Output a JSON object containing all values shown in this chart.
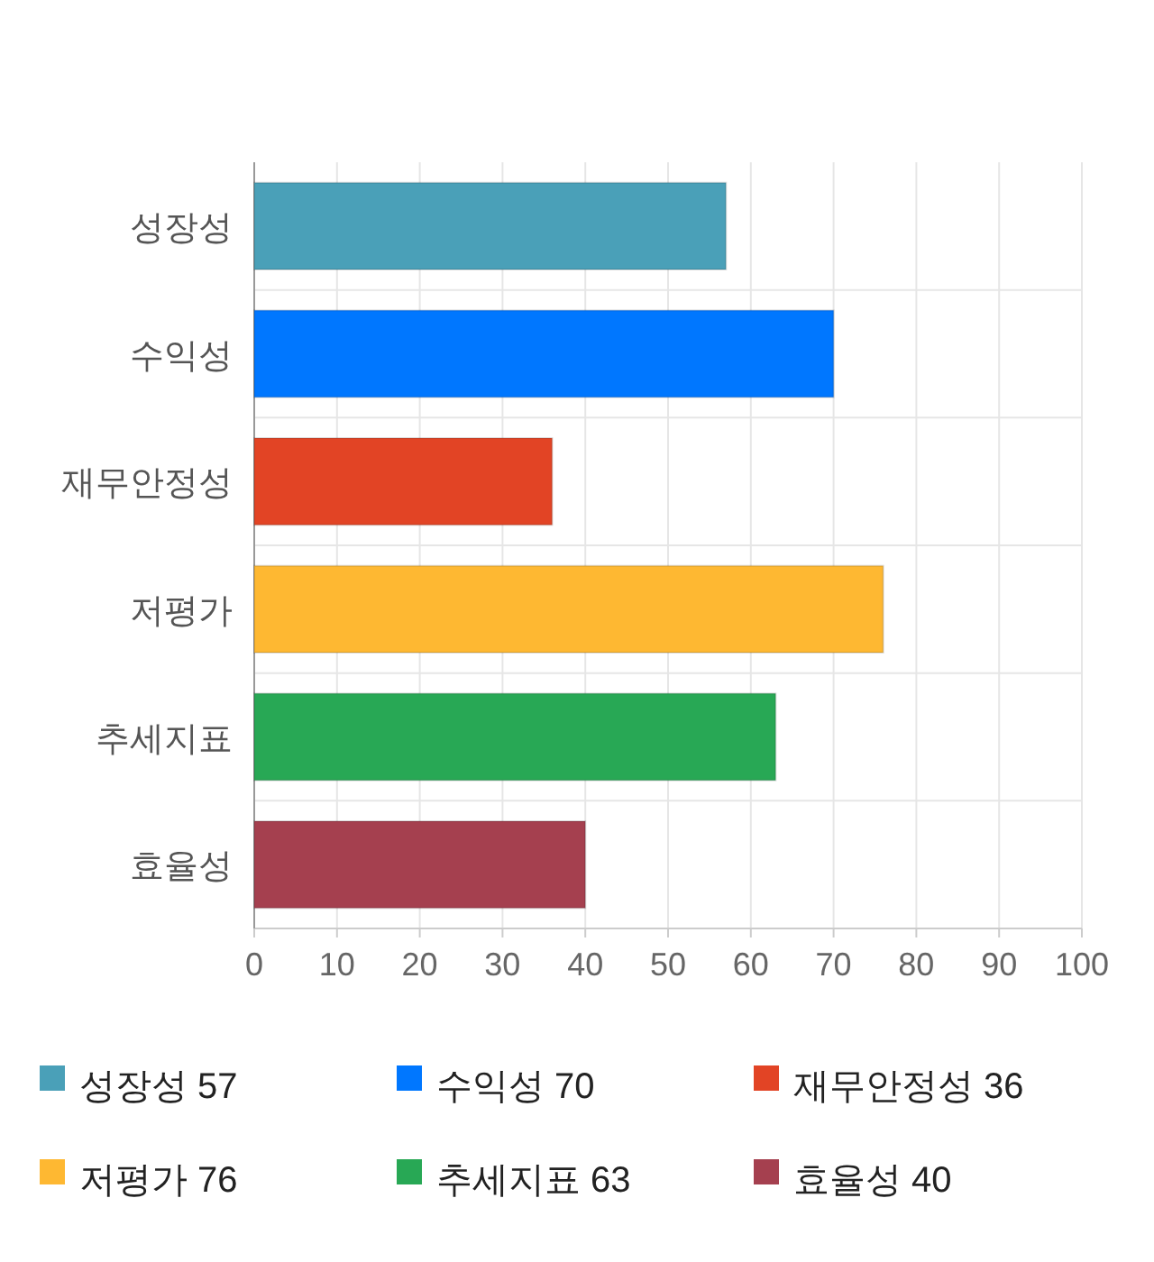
{
  "chart_data": {
    "type": "bar",
    "orientation": "horizontal",
    "categories": [
      "성장성",
      "수익성",
      "재무안정성",
      "저평가",
      "추세지표",
      "효율성"
    ],
    "series": [
      {
        "name": "성장성 57",
        "color": "#4aa0b8",
        "values": [
          57,
          null,
          null,
          null,
          null,
          null
        ]
      },
      {
        "name": "수익성 70",
        "color": "#0077ff",
        "values": [
          null,
          70,
          null,
          null,
          null,
          null
        ]
      },
      {
        "name": "재무안정성 36",
        "color": "#e24425",
        "values": [
          null,
          null,
          36,
          null,
          null,
          null
        ]
      },
      {
        "name": "저평가 76",
        "color": "#feb832",
        "values": [
          null,
          null,
          null,
          76,
          null,
          null
        ]
      },
      {
        "name": "추세지표 63",
        "color": "#28a855",
        "values": [
          null,
          null,
          null,
          null,
          63,
          null
        ]
      },
      {
        "name": "효율성 40",
        "color": "#a5404f",
        "values": [
          null,
          null,
          null,
          null,
          null,
          40
        ]
      }
    ],
    "xlim": [
      0,
      100
    ],
    "xticks": [
      0,
      10,
      20,
      30,
      40,
      50,
      60,
      70,
      80,
      90,
      100
    ],
    "grid": true,
    "legend": "bottom"
  }
}
